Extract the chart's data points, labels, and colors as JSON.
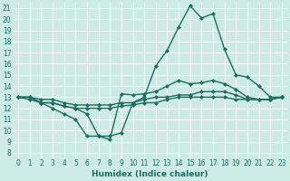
{
  "xlabel": "Humidex (Indice chaleur)",
  "bg_color": "#ceeae4",
  "line_color": "#1a6e62",
  "xlim": [
    -0.5,
    23.5
  ],
  "ylim": [
    7.5,
    21.5
  ],
  "xticks": [
    0,
    1,
    2,
    3,
    4,
    5,
    6,
    7,
    8,
    9,
    10,
    11,
    12,
    13,
    14,
    15,
    16,
    17,
    18,
    19,
    20,
    21,
    22,
    23
  ],
  "yticks": [
    8,
    9,
    10,
    11,
    12,
    13,
    14,
    15,
    16,
    17,
    18,
    19,
    20,
    21
  ],
  "line_big_x": [
    0,
    1,
    2,
    3,
    4,
    5,
    6,
    7,
    8,
    9,
    10,
    11,
    12,
    13,
    14,
    15,
    16,
    17,
    18,
    19,
    20,
    21,
    22,
    23
  ],
  "line_big_y": [
    13.0,
    13.0,
    12.5,
    12.0,
    11.5,
    11.0,
    9.5,
    9.5,
    9.5,
    9.8,
    12.5,
    13.0,
    15.8,
    17.2,
    19.3,
    21.2,
    20.1,
    20.5,
    17.3,
    15.0,
    14.8,
    14.0,
    13.0,
    13.0
  ],
  "line_mid_x": [
    0,
    1,
    2,
    3,
    4,
    5,
    6,
    7,
    8,
    9,
    10,
    11,
    12,
    13,
    14,
    15,
    16,
    17,
    18,
    19,
    20,
    21,
    22,
    23
  ],
  "line_mid_y": [
    13.0,
    13.0,
    12.5,
    12.5,
    12.2,
    12.0,
    11.5,
    9.5,
    9.2,
    13.3,
    13.2,
    13.3,
    13.5,
    14.0,
    14.5,
    14.2,
    14.3,
    14.5,
    14.2,
    13.7,
    13.0,
    12.8,
    12.8,
    13.0
  ],
  "line_flat1_x": [
    0,
    1,
    2,
    3,
    4,
    5,
    6,
    7,
    8,
    9,
    10,
    11,
    12,
    13,
    14,
    15,
    16,
    17,
    18,
    19,
    20,
    21,
    22,
    23
  ],
  "line_flat1_y": [
    13.0,
    13.0,
    12.8,
    12.8,
    12.5,
    12.3,
    12.3,
    12.3,
    12.3,
    12.5,
    12.5,
    12.8,
    13.0,
    13.0,
    13.2,
    13.2,
    13.5,
    13.5,
    13.5,
    13.2,
    12.8,
    12.8,
    12.8,
    13.0
  ],
  "line_flat2_x": [
    0,
    1,
    2,
    3,
    4,
    5,
    6,
    7,
    8,
    9,
    10,
    11,
    12,
    13,
    14,
    15,
    16,
    17,
    18,
    19,
    20,
    21,
    22,
    23
  ],
  "line_flat2_y": [
    13.0,
    12.8,
    12.5,
    12.5,
    12.2,
    12.0,
    12.0,
    12.0,
    12.0,
    12.2,
    12.3,
    12.5,
    12.5,
    12.8,
    13.0,
    13.0,
    13.0,
    13.0,
    13.0,
    12.8,
    12.8,
    12.8,
    12.8,
    13.0
  ],
  "marker": "D",
  "markersize": 2.5,
  "linewidth": 1.0
}
